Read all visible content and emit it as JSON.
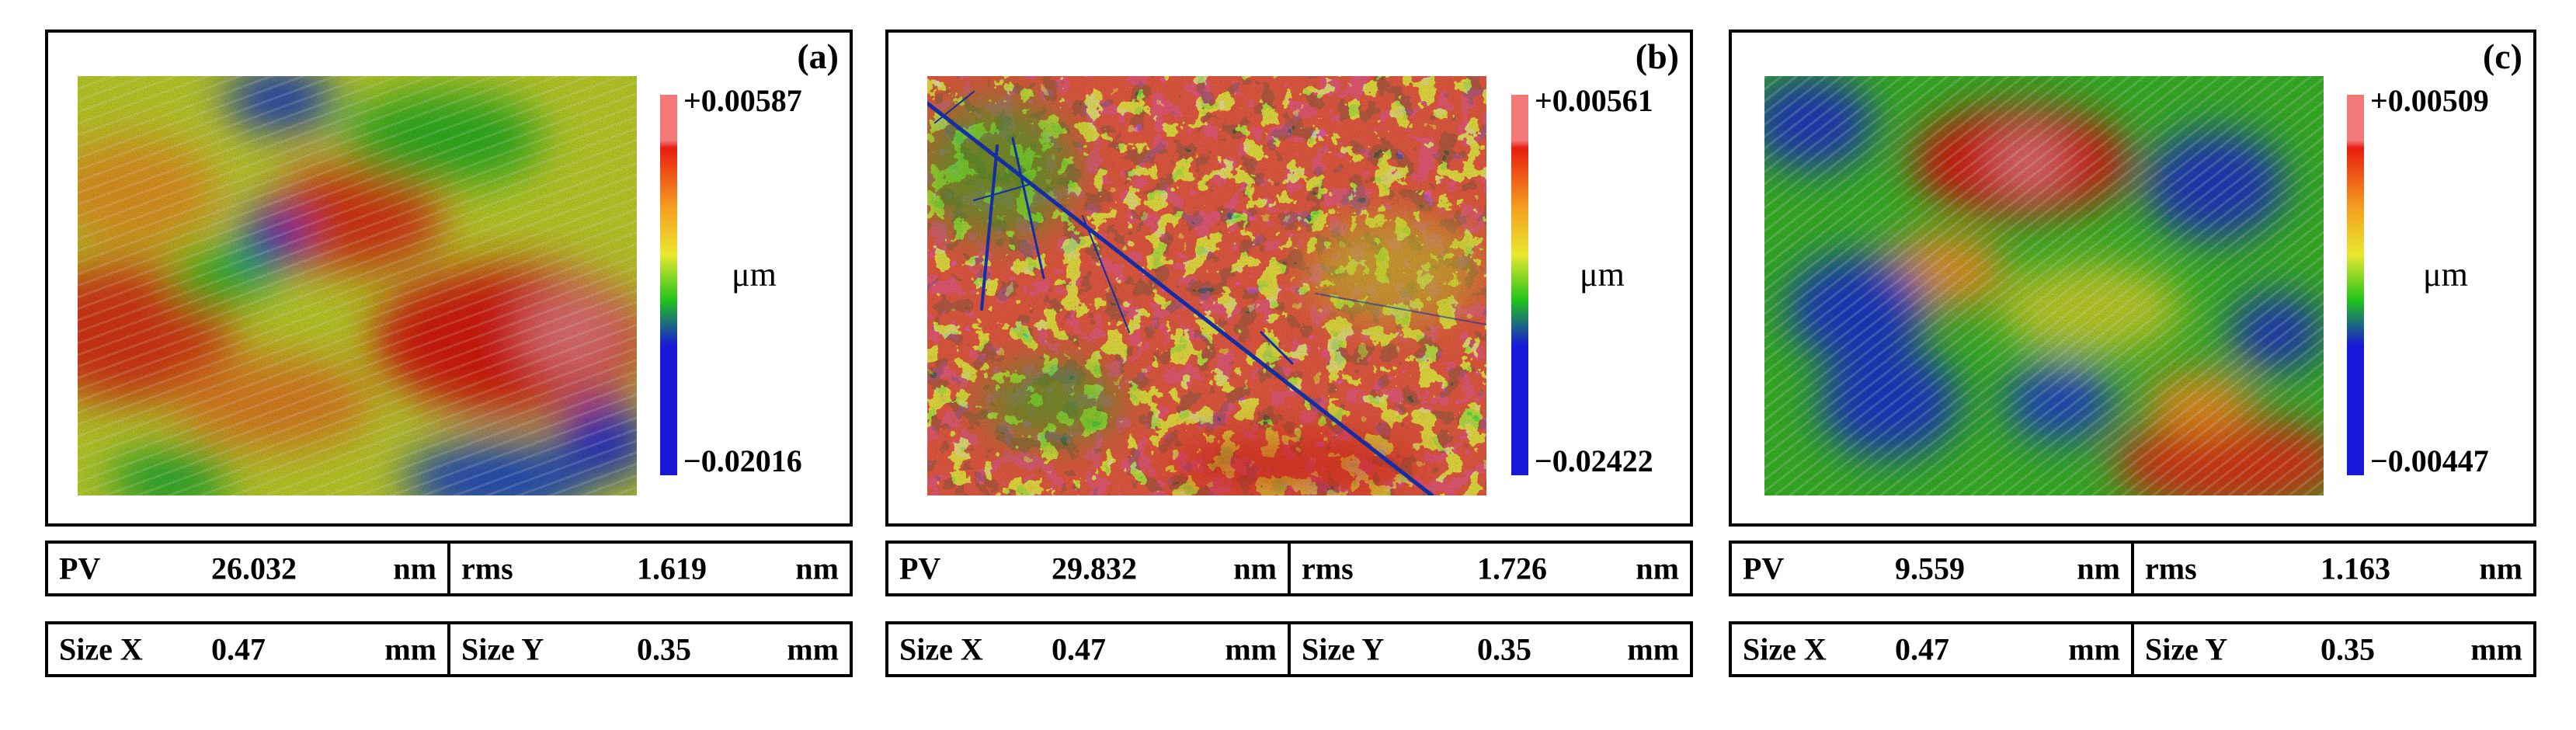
{
  "panels": [
    {
      "label": "(a)",
      "colorbar": {
        "max": "+0.00587",
        "min": "−0.02016",
        "unit": "μm"
      },
      "map_pattern": "diagonal-waves",
      "table": {
        "pv_label": "PV",
        "pv_value": "26.032",
        "pv_unit": "nm",
        "rms_label": "rms",
        "rms_value": "1.619",
        "rms_unit": "nm",
        "sizex_label": "Size X",
        "sizex_value": "0.47",
        "sizex_unit": "mm",
        "sizey_label": "Size Y",
        "sizey_value": "0.35",
        "sizey_unit": "mm"
      }
    },
    {
      "label": "(b)",
      "colorbar": {
        "max": "+0.00561",
        "min": "−0.02422",
        "unit": "μm"
      },
      "map_pattern": "scratched-speckle",
      "table": {
        "pv_label": "PV",
        "pv_value": "29.832",
        "pv_unit": "nm",
        "rms_label": "rms",
        "rms_value": "1.726",
        "rms_unit": "nm",
        "sizex_label": "Size X",
        "sizex_value": "0.47",
        "sizex_unit": "mm",
        "sizey_label": "Size Y",
        "sizey_value": "0.35",
        "sizey_unit": "mm"
      }
    },
    {
      "label": "(c)",
      "colorbar": {
        "max": "+0.00509",
        "min": "−0.00447",
        "unit": "μm"
      },
      "map_pattern": "diagonal-stripes",
      "table": {
        "pv_label": "PV",
        "pv_value": "9.559",
        "pv_unit": "nm",
        "rms_label": "rms",
        "rms_value": "1.163",
        "rms_unit": "nm",
        "sizex_label": "Size X",
        "sizex_value": "0.47",
        "sizex_unit": "mm",
        "sizey_label": "Size Y",
        "sizey_value": "0.35",
        "sizey_unit": "mm"
      }
    }
  ],
  "colors": {
    "bar_top": "#f47a7a",
    "red": "#e81e10",
    "orange": "#f5a020",
    "yellow": "#e8e830",
    "green": "#22c41c",
    "blue": "#1818d8"
  }
}
